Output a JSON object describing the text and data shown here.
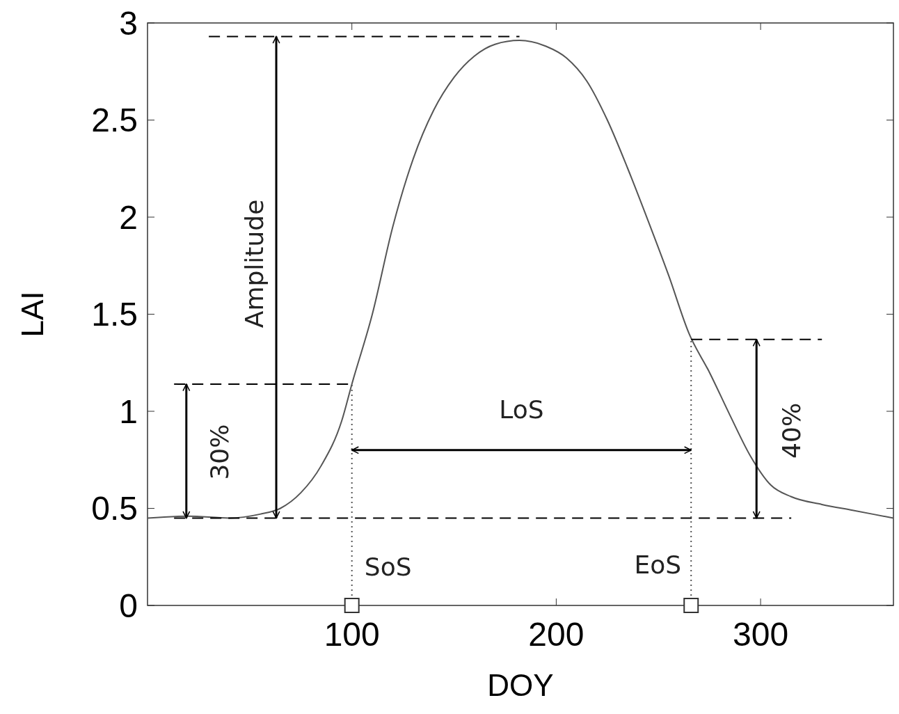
{
  "chart_data": {
    "type": "line",
    "xlabel": "DOY",
    "ylabel": "LAI",
    "xlim": [
      0,
      365
    ],
    "ylim": [
      0,
      3
    ],
    "xticks": [
      100,
      200,
      300
    ],
    "yticks": [
      0,
      {
        "value": 0.5,
        "label": "0.5"
      },
      1,
      {
        "value": 1.5,
        "label": "1.5"
      },
      2,
      {
        "value": 2.5,
        "label": "2.5"
      },
      3
    ],
    "grid": false,
    "series": [
      {
        "color": "#555555",
        "x": [
          0,
          20,
          40,
          55,
          65,
          75,
          85,
          95,
          100,
          110,
          120,
          130,
          140,
          150,
          160,
          170,
          182,
          195,
          205,
          215,
          225,
          235,
          245,
          255,
          265,
          275,
          285,
          295,
          305,
          315,
          330,
          345,
          365
        ],
        "values": [
          0.45,
          0.46,
          0.45,
          0.47,
          0.5,
          0.58,
          0.72,
          0.95,
          1.14,
          1.5,
          1.95,
          2.3,
          2.55,
          2.72,
          2.83,
          2.89,
          2.91,
          2.88,
          2.82,
          2.7,
          2.5,
          2.25,
          1.98,
          1.7,
          1.4,
          1.2,
          0.98,
          0.77,
          0.62,
          0.56,
          0.52,
          0.49,
          0.45
        ]
      },
      {
        "color": "#000000",
        "line_style": "dashed",
        "x": [
          30,
          182
        ],
        "values": [
          2.93,
          2.93
        ]
      },
      {
        "color": "#000000",
        "line_style": "dashed",
        "x": [
          13,
          99
        ],
        "values": [
          1.14,
          1.14
        ]
      },
      {
        "color": "#000000",
        "line_style": "dashed",
        "x": [
          13,
          315
        ],
        "values": [
          0.45,
          0.45
        ]
      },
      {
        "color": "#000000",
        "line_style": "dashed",
        "x": [
          266,
          330
        ],
        "values": [
          1.37,
          1.37
        ]
      },
      {
        "color": "#555555",
        "line_style": "dotted",
        "x": [
          100,
          100
        ],
        "values": [
          0,
          1.14
        ]
      },
      {
        "color": "#555555",
        "line_style": "dotted",
        "x": [
          266,
          266
        ],
        "values": [
          0,
          1.37
        ]
      },
      {
        "color": "#000000",
        "line_style": "solid",
        "x": [
          63,
          63
        ],
        "values": [
          0.45,
          2.93
        ]
      },
      {
        "color": "#000000",
        "line_style": "solid",
        "x": [
          19,
          19
        ],
        "values": [
          0.45,
          1.14
        ]
      },
      {
        "color": "#000000",
        "line_style": "solid",
        "x": [
          298,
          298
        ],
        "values": [
          0.45,
          1.37
        ]
      },
      {
        "color": "#000000",
        "line_style": "solid",
        "x": [
          100,
          266
        ],
        "values": [
          0.8,
          0.8
        ]
      },
      {
        "type": "scatter",
        "color": "#333333",
        "marker": "square",
        "x": [
          100,
          266
        ],
        "values": [
          0,
          0
        ]
      }
    ],
    "annotations": [
      {
        "text": "Amplitude",
        "x": 63,
        "y": 1.76
      },
      {
        "text": "30%",
        "x": 19,
        "y": 0.79
      },
      {
        "text": "40%",
        "x": 298,
        "y": 0.9
      },
      {
        "text": "LoS",
        "x": 183,
        "y": 0.8
      },
      {
        "text": "SoS",
        "x": 100,
        "y": 0.2
      },
      {
        "text": "EoS",
        "x": 266,
        "y": 0.21
      }
    ]
  }
}
